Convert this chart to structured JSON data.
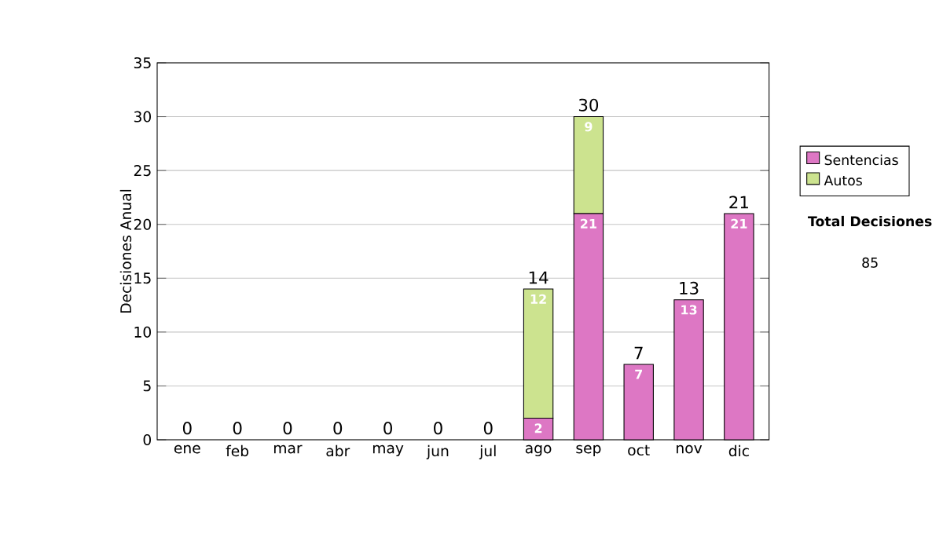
{
  "chart_data": {
    "type": "bar",
    "stacked": true,
    "ylabel": "Decisiones Anual",
    "categories": [
      "ene",
      "feb",
      "mar",
      "abr",
      "may",
      "jun",
      "jul",
      "ago",
      "sep",
      "oct",
      "nov",
      "dic"
    ],
    "series": [
      {
        "name": "Sentencias",
        "color": "#dd77c4",
        "values": [
          0,
          0,
          0,
          0,
          0,
          0,
          0,
          2,
          21,
          7,
          13,
          21
        ],
        "value_labels": [
          null,
          null,
          null,
          null,
          null,
          null,
          null,
          "2",
          "21",
          "7",
          "13",
          "21"
        ]
      },
      {
        "name": "Autos",
        "color": "#cce38f",
        "values": [
          0,
          0,
          0,
          0,
          0,
          0,
          0,
          12,
          9,
          0,
          0,
          0
        ],
        "value_labels": [
          null,
          null,
          null,
          null,
          null,
          null,
          null,
          "12",
          "9",
          null,
          null,
          null
        ]
      }
    ],
    "totals": [
      "0",
      "0",
      "0",
      "0",
      "0",
      "0",
      "0",
      "14",
      "30",
      "7",
      "13",
      "21"
    ],
    "ylim": [
      0,
      35
    ],
    "yticks": [
      0,
      5,
      10,
      15,
      20,
      25,
      30,
      35
    ],
    "grid": "y",
    "legend": "right",
    "annotations": [
      "Total Decisiones",
      "85"
    ]
  }
}
